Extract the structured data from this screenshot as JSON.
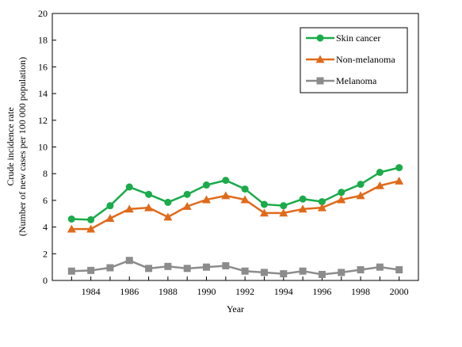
{
  "chart_data": {
    "type": "line",
    "xlabel": "Year",
    "ylabel_line1": "Crude incidence  rate",
    "ylabel_line2": "(Number of new cases per 100 000 population)",
    "x": [
      1983,
      1984,
      1985,
      1986,
      1987,
      1988,
      1989,
      1990,
      1991,
      1992,
      1993,
      1994,
      1995,
      1996,
      1997,
      1998,
      1999,
      2000
    ],
    "xlim": [
      1982,
      2001
    ],
    "xticks": [
      "1984",
      "1986",
      "1988",
      "1990",
      "1992",
      "1994",
      "1996",
      "1998",
      "2000"
    ],
    "ylim": [
      0,
      20
    ],
    "yticks": [
      "0",
      "2",
      "4",
      "6",
      "8",
      "10",
      "12",
      "14",
      "16",
      "18",
      "20"
    ],
    "grid": false,
    "legend_position": "top-right",
    "series": [
      {
        "name": "Skin cancer",
        "color": "#1aab4a",
        "marker": "circle",
        "values": [
          4.6,
          4.55,
          5.6,
          7.0,
          6.45,
          5.85,
          6.45,
          7.15,
          7.5,
          6.85,
          5.7,
          5.6,
          6.1,
          5.9,
          6.6,
          7.2,
          8.1,
          8.45
        ]
      },
      {
        "name": "Non-melanoma",
        "color": "#e06a1a",
        "marker": "triangle",
        "values": [
          3.85,
          3.85,
          4.65,
          5.35,
          5.45,
          4.75,
          5.55,
          6.05,
          6.35,
          6.05,
          5.05,
          5.05,
          5.35,
          5.45,
          6.05,
          6.35,
          7.1,
          7.45
        ]
      },
      {
        "name": "Melanoma",
        "color": "#8c8c8c",
        "marker": "square",
        "values": [
          0.7,
          0.75,
          0.95,
          1.5,
          0.9,
          1.05,
          0.9,
          1.0,
          1.1,
          0.7,
          0.6,
          0.5,
          0.7,
          0.45,
          0.6,
          0.8,
          1.0,
          0.8
        ]
      }
    ]
  }
}
